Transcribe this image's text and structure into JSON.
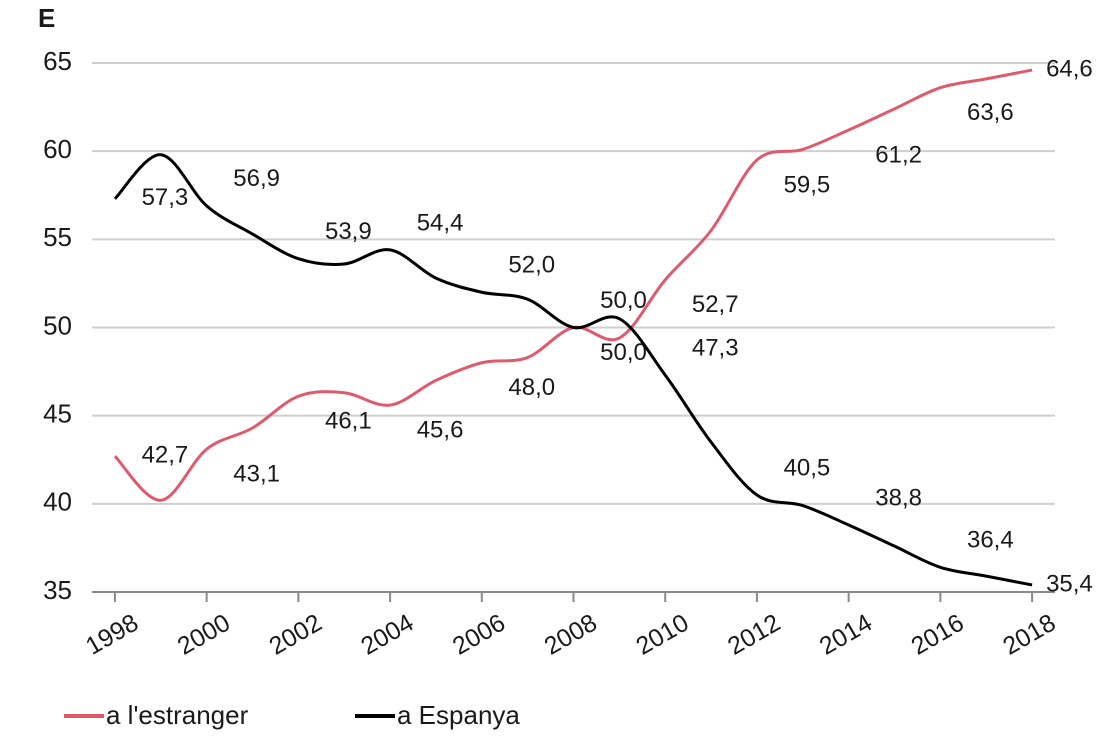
{
  "chart_data": {
    "type": "line",
    "title": "E",
    "x": [
      1998,
      1999,
      2000,
      2001,
      2002,
      2003,
      2004,
      2005,
      2006,
      2007,
      2008,
      2009,
      2010,
      2011,
      2012,
      2013,
      2014,
      2015,
      2016,
      2017,
      2018
    ],
    "series": [
      {
        "name": "a l'estranger",
        "color": "#e05a6e",
        "values": [
          42.7,
          40.2,
          43.1,
          44.3,
          46.1,
          46.3,
          45.6,
          47.0,
          48.0,
          48.3,
          50.0,
          49.4,
          52.7,
          55.5,
          59.5,
          60.1,
          61.2,
          62.4,
          63.6,
          64.1,
          64.6
        ],
        "value_labels": [
          "42,7",
          null,
          "43,1",
          null,
          "46,1",
          null,
          "45,6",
          null,
          "48,0",
          null,
          "50,0",
          null,
          "52,7",
          null,
          "59,5",
          null,
          "61,2",
          null,
          "63,6",
          null,
          "64,6"
        ]
      },
      {
        "name": "a Espanya",
        "color": "#000000",
        "values": [
          57.3,
          59.8,
          56.9,
          55.3,
          53.9,
          53.6,
          54.4,
          52.8,
          52.0,
          51.6,
          50.0,
          50.5,
          47.3,
          43.5,
          40.5,
          39.9,
          38.8,
          37.6,
          36.4,
          35.9,
          35.4
        ],
        "value_labels": [
          "57,3",
          null,
          "56,9",
          null,
          "53,9",
          null,
          "54,4",
          null,
          "52,0",
          null,
          "50,0",
          null,
          "47,3",
          null,
          "40,5",
          null,
          "38,8",
          null,
          "36,4",
          null,
          "35,4"
        ]
      }
    ],
    "xlim": [
      1997.5,
      2018.5
    ],
    "xticks": [
      1998,
      2000,
      2002,
      2004,
      2006,
      2008,
      2010,
      2012,
      2014,
      2016,
      2018
    ],
    "ylim": [
      35,
      65
    ],
    "yticks": [
      35,
      40,
      45,
      50,
      55,
      60,
      65
    ],
    "grid": true
  }
}
